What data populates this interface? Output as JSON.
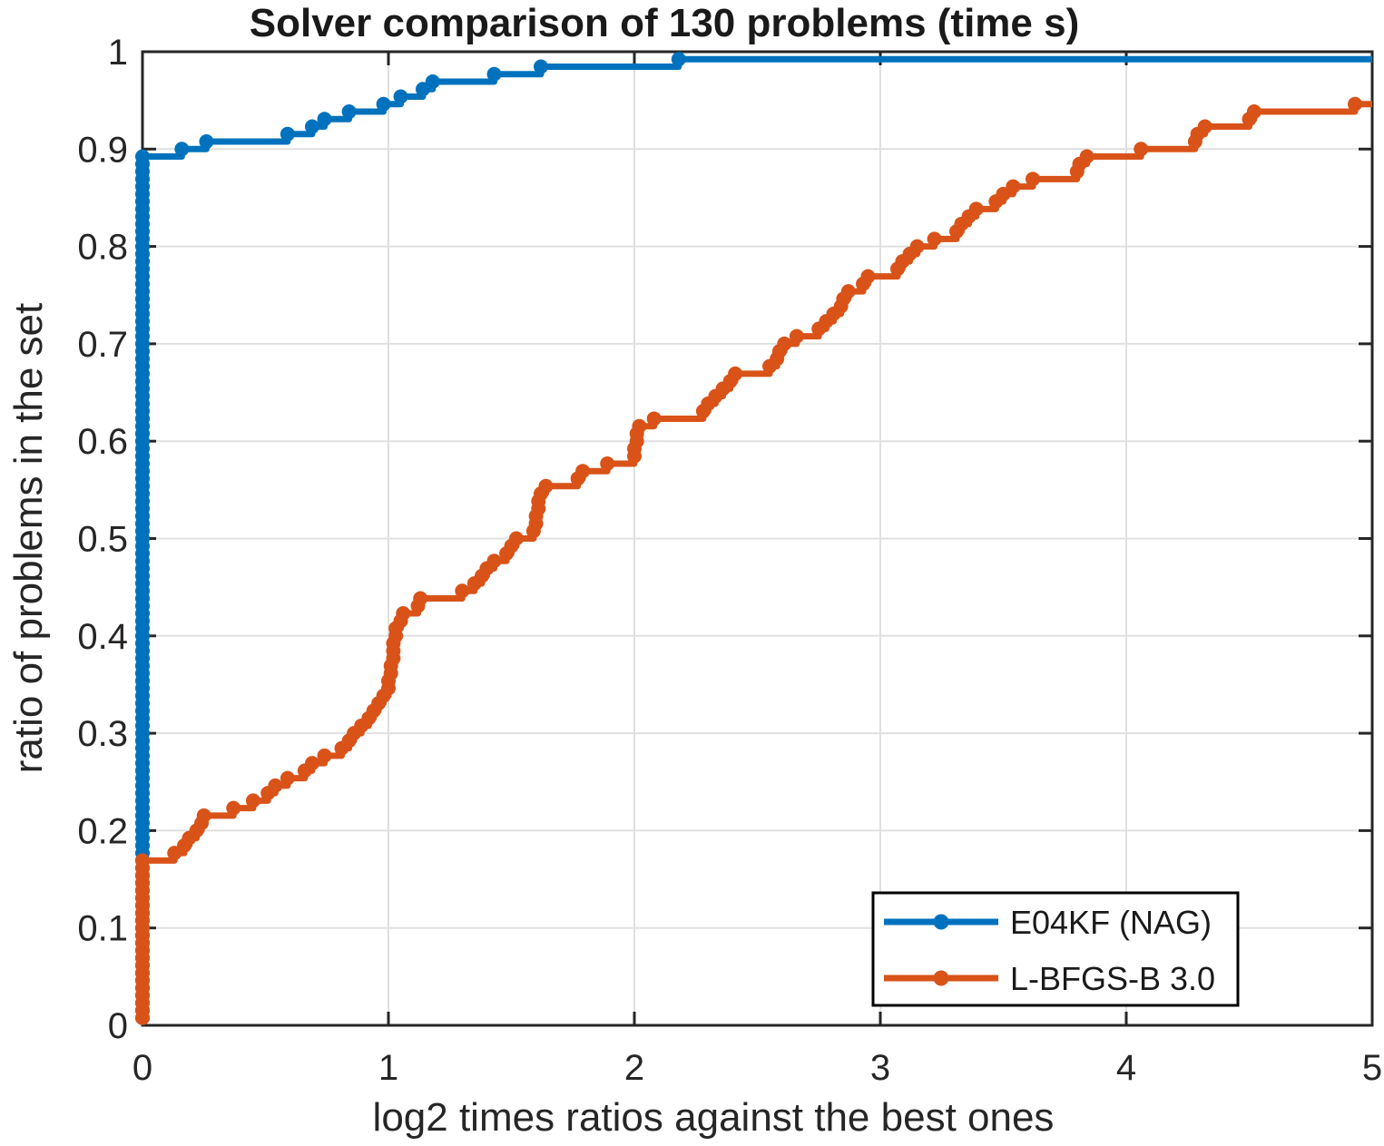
{
  "chart_data": {
    "type": "line",
    "subtype": "stairs-performance-profile",
    "title": "Solver comparison of 130 problems (time s)",
    "xlabel": "log2 times ratios against the best ones",
    "ylabel": "ratio of problems in the set",
    "xlim": [
      0,
      5
    ],
    "ylim": [
      0,
      1
    ],
    "grid": true,
    "x_ticks": [
      "0",
      "1",
      "2",
      "3",
      "4",
      "5"
    ],
    "x_tick_values": [
      0,
      1,
      2,
      3,
      4,
      5
    ],
    "y_ticks": [
      "0",
      "0.1",
      "0.2",
      "0.3",
      "0.4",
      "0.5",
      "0.6",
      "0.7",
      "0.8",
      "0.9",
      "1"
    ],
    "y_tick_values": [
      0,
      0.1,
      0.2,
      0.3,
      0.4,
      0.5,
      0.6,
      0.7,
      0.8,
      0.9,
      1
    ],
    "n_problems": 130,
    "series": [
      {
        "name": "E04KF (NAG)",
        "color": "#0072BD",
        "points_at_zero": 116,
        "ratio_at_zero": 0.892,
        "step_x": [
          0.16,
          0.26,
          0.59,
          0.69,
          0.74,
          0.84,
          0.98,
          1.05,
          1.14,
          1.18,
          1.43,
          1.62,
          2.18
        ],
        "end_x": 5.0,
        "final_ratio": 0.992
      },
      {
        "name": "L-BFGS-B 3.0",
        "color": "#D95319",
        "points_at_zero": 22,
        "ratio_at_zero": 0.169,
        "step_x": [
          0.13,
          0.17,
          0.19,
          0.22,
          0.24,
          0.25,
          0.37,
          0.45,
          0.51,
          0.54,
          0.59,
          0.66,
          0.69,
          0.74,
          0.81,
          0.84,
          0.86,
          0.89,
          0.92,
          0.94,
          0.96,
          0.98,
          1.0,
          1.0,
          1.01,
          1.01,
          1.02,
          1.02,
          1.02,
          1.03,
          1.03,
          1.05,
          1.06,
          1.12,
          1.13,
          1.3,
          1.35,
          1.38,
          1.4,
          1.43,
          1.48,
          1.5,
          1.52,
          1.59,
          1.6,
          1.6,
          1.61,
          1.61,
          1.62,
          1.64,
          1.77,
          1.79,
          1.89,
          2.0,
          2.0,
          2.01,
          2.01,
          2.02,
          2.08,
          2.28,
          2.3,
          2.33,
          2.36,
          2.39,
          2.41,
          2.55,
          2.58,
          2.59,
          2.61,
          2.66,
          2.75,
          2.78,
          2.81,
          2.84,
          2.85,
          2.87,
          2.93,
          2.95,
          3.07,
          3.09,
          3.12,
          3.15,
          3.22,
          3.31,
          3.33,
          3.36,
          3.39,
          3.47,
          3.5,
          3.54,
          3.62,
          3.8,
          3.81,
          3.84,
          4.06,
          4.28,
          4.29,
          4.32,
          4.5,
          4.52,
          4.93
        ],
        "end_x": 5.0,
        "final_ratio": 0.946
      }
    ]
  },
  "legend": {
    "position": "southeast",
    "items": [
      {
        "label": "E04KF (NAG)"
      },
      {
        "label": "L-BFGS-B 3.0"
      }
    ]
  }
}
